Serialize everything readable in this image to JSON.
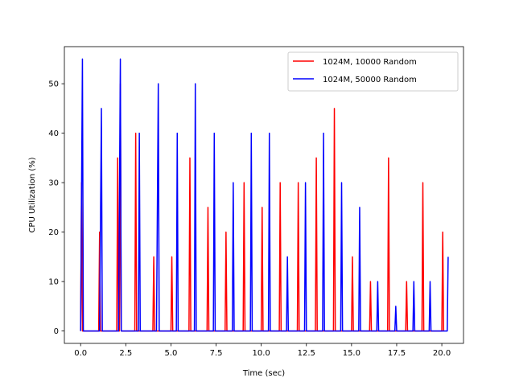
{
  "chart_data": {
    "type": "line",
    "xlabel": "Time (sec)",
    "ylabel": "CPU Utilization (%)",
    "xlim": [
      -0.9,
      21.2
    ],
    "ylim": [
      -2.5,
      57.5
    ],
    "xticks": [
      0.0,
      2.5,
      5.0,
      7.5,
      10.0,
      12.5,
      15.0,
      17.5,
      20.0
    ],
    "xtick_labels": [
      "0.0",
      "2.5",
      "5.0",
      "7.5",
      "10.0",
      "12.5",
      "15.0",
      "17.5",
      "20.0"
    ],
    "yticks": [
      0,
      10,
      20,
      30,
      40,
      50
    ],
    "ytick_labels": [
      "0",
      "10",
      "20",
      "30",
      "40",
      "50"
    ],
    "grid": false,
    "legend_position": "top-right",
    "series": [
      {
        "name": "1024M, 10000 Random",
        "color": "#ff0000",
        "x": [
          0.0,
          0.05,
          0.1,
          1.0,
          1.05,
          1.1,
          2.0,
          2.05,
          2.1,
          2.15,
          2.2,
          2.25,
          3.0,
          3.05,
          3.1,
          4.0,
          4.05,
          4.1,
          5.0,
          5.05,
          5.1,
          6.0,
          6.05,
          6.1,
          7.0,
          7.05,
          7.1,
          8.0,
          8.05,
          8.1,
          9.0,
          9.05,
          9.1,
          10.0,
          10.05,
          10.1,
          11.0,
          11.05,
          11.1,
          12.0,
          12.05,
          12.1,
          13.0,
          13.05,
          13.1,
          14.0,
          14.05,
          14.1,
          15.0,
          15.05,
          15.1,
          16.0,
          16.05,
          16.1,
          17.0,
          17.05,
          17.1,
          18.0,
          18.05,
          18.1,
          18.9,
          18.95,
          19.0,
          20.0,
          20.05,
          20.1
        ],
        "y": [
          0,
          30,
          0,
          0,
          20,
          0,
          0,
          35,
          0,
          0,
          50,
          0,
          0,
          40,
          0,
          0,
          15,
          0,
          0,
          15,
          0,
          0,
          35,
          0,
          0,
          25,
          0,
          0,
          20,
          0,
          0,
          30,
          0,
          0,
          25,
          0,
          0,
          30,
          0,
          0,
          30,
          0,
          0,
          35,
          0,
          0,
          45,
          0,
          0,
          15,
          0,
          0,
          10,
          0,
          0,
          35,
          0,
          0,
          10,
          0,
          0,
          30,
          0,
          0,
          20,
          0
        ]
      },
      {
        "name": "1024M, 50000 Random",
        "color": "#0000ff",
        "x": [
          0.0,
          0.1,
          0.15,
          1.05,
          1.15,
          1.2,
          2.1,
          2.2,
          2.25,
          3.2,
          3.25,
          3.3,
          4.2,
          4.3,
          4.35,
          5.3,
          5.35,
          5.4,
          6.3,
          6.35,
          6.4,
          7.35,
          7.4,
          7.45,
          8.4,
          8.45,
          8.5,
          9.4,
          9.45,
          9.5,
          10.4,
          10.45,
          10.5,
          11.4,
          11.45,
          11.5,
          12.4,
          12.45,
          12.5,
          13.4,
          13.45,
          13.5,
          14.4,
          14.45,
          14.5,
          15.4,
          15.45,
          15.5,
          16.4,
          16.45,
          16.5,
          17.4,
          17.45,
          17.5,
          18.4,
          18.45,
          18.5,
          19.3,
          19.35,
          19.4,
          20.3,
          20.35
        ],
        "y": [
          0,
          55,
          0,
          0,
          45,
          0,
          0,
          55,
          0,
          0,
          40,
          0,
          0,
          50,
          0,
          0,
          40,
          0,
          0,
          50,
          0,
          0,
          40,
          0,
          0,
          30,
          0,
          0,
          40,
          0,
          0,
          40,
          0,
          0,
          15,
          0,
          0,
          30,
          0,
          0,
          40,
          0,
          0,
          30,
          0,
          0,
          25,
          0,
          0,
          10,
          0,
          0,
          5,
          0,
          0,
          10,
          0,
          0,
          10,
          0,
          0,
          15
        ]
      }
    ]
  }
}
